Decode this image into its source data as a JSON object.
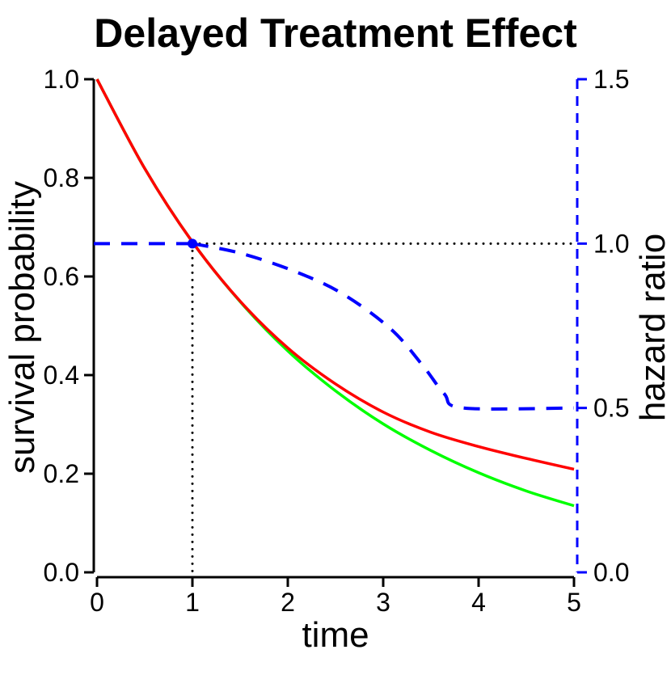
{
  "chart_data": {
    "type": "line",
    "title": "Delayed Treatment Effect",
    "xlabel": "time",
    "ylabel": "survival probability",
    "y2label": "hazard ratio",
    "xlim": [
      0,
      5
    ],
    "ylim": [
      0,
      1
    ],
    "y2lim": [
      0,
      1.5
    ],
    "xticks": [
      "0",
      "1",
      "2",
      "3",
      "4",
      "5"
    ],
    "yticks": [
      "0.0",
      "0.2",
      "0.4",
      "0.6",
      "0.8",
      "1.0"
    ],
    "y2ticks": [
      "0.0",
      "0.5",
      "1.0",
      "1.5"
    ],
    "grid": false,
    "colors": {
      "control": "#00ff00",
      "treatment": "#ff0000",
      "hazard_ratio": "#0000ff",
      "reference": "#000000"
    },
    "series": [
      {
        "key": "control",
        "axis": "left",
        "style": "solid",
        "x": [
          0,
          0.5,
          1,
          1.5,
          2,
          2.5,
          3,
          3.5,
          4,
          4.5,
          5
        ],
        "y": [
          1.0,
          0.819,
          0.67,
          0.549,
          0.449,
          0.368,
          0.301,
          0.247,
          0.202,
          0.165,
          0.135
        ]
      },
      {
        "key": "treatment",
        "axis": "left",
        "style": "solid",
        "x": [
          0,
          0.5,
          1,
          1.5,
          2,
          2.5,
          3,
          3.5,
          4,
          4.5,
          5
        ],
        "y": [
          1.0,
          0.819,
          0.67,
          0.55,
          0.455,
          0.382,
          0.325,
          0.284,
          0.255,
          0.231,
          0.209
        ]
      },
      {
        "key": "hazard_ratio",
        "axis": "right",
        "style": "dashed",
        "x": [
          0,
          1,
          1.5,
          2.06,
          2.57,
          3.08,
          3.42,
          3.64,
          3.84,
          5
        ],
        "y": [
          1.0,
          1.0,
          0.971,
          0.917,
          0.848,
          0.74,
          0.627,
          0.543,
          0.5,
          0.5
        ]
      }
    ],
    "annotations": {
      "delay_point": {
        "x": 1,
        "y2": 1.0
      },
      "reference_lines": [
        {
          "type": "vertical",
          "x": 1
        },
        {
          "type": "horizontal",
          "y2": 1.0
        }
      ]
    }
  }
}
